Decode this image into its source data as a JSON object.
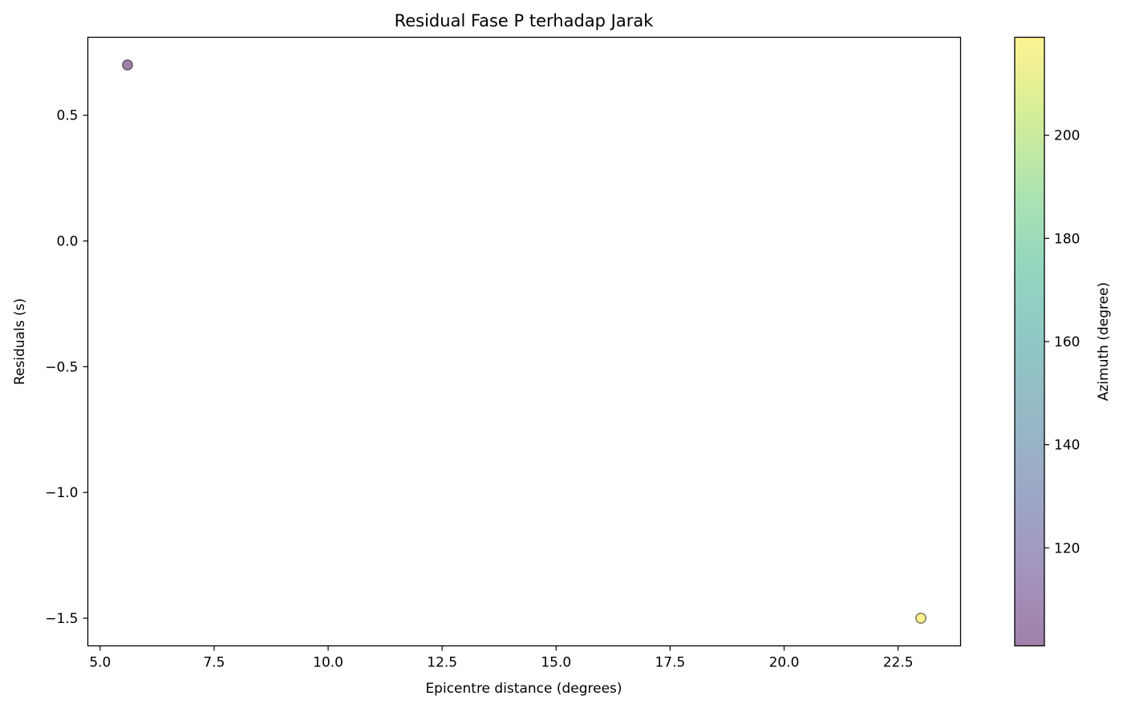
{
  "chart_data": {
    "type": "scatter",
    "title": "Residual Fase P terhadap Jarak",
    "xlabel": "Epicentre distance (degrees)",
    "ylabel": "Residuals (s)",
    "xlim": [
      4.73,
      23.87
    ],
    "ylim": [
      -1.61,
      0.81
    ],
    "xticks": [
      5.0,
      7.5,
      10.0,
      12.5,
      15.0,
      17.5,
      20.0,
      22.5
    ],
    "xtick_labels": [
      "5.0",
      "7.5",
      "10.0",
      "12.5",
      "15.0",
      "17.5",
      "20.0",
      "22.5"
    ],
    "yticks": [
      0.5,
      0.0,
      -0.5,
      -1.0,
      -1.5
    ],
    "ytick_labels": [
      "0.5",
      "0.0",
      "−0.5",
      "−1.0",
      "−1.5"
    ],
    "grid": false,
    "points": [
      {
        "x": 5.6,
        "y": 0.7,
        "azimuth": 101
      },
      {
        "x": 23.0,
        "y": -1.5,
        "azimuth": 219
      }
    ],
    "colorbar": {
      "label": "Azimuth (degree)",
      "range": [
        101,
        219
      ],
      "ticks": [
        120,
        140,
        160,
        180,
        200
      ],
      "tick_labels": [
        "120",
        "140",
        "160",
        "180",
        "200"
      ],
      "colormap": "viridis",
      "alpha": 0.5
    }
  }
}
